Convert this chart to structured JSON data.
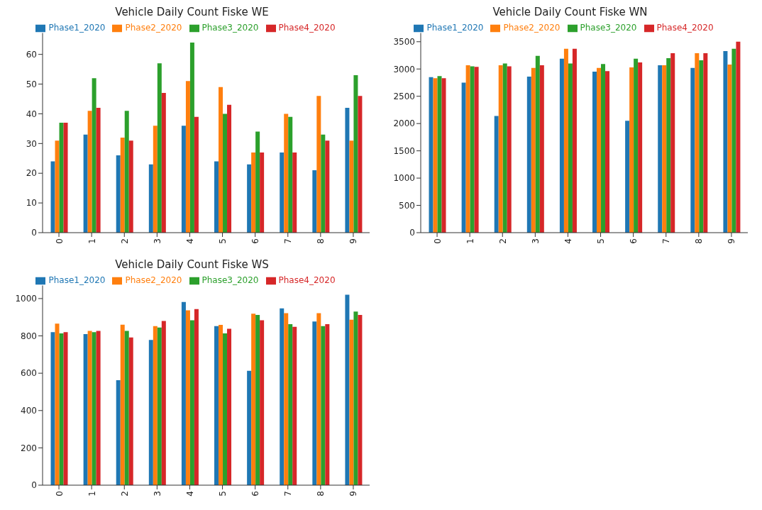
{
  "chart_data": [
    {
      "type": "bar",
      "title": "Vehicle Daily Count Fiske WE",
      "categories": [
        "0",
        "1",
        "2",
        "3",
        "4",
        "5",
        "6",
        "7",
        "8",
        "9"
      ],
      "ylim": [
        0,
        67.2
      ],
      "yticks": [
        0,
        10,
        20,
        30,
        40,
        50,
        60
      ],
      "legend": "top",
      "series": [
        {
          "name": "Phase1_2020",
          "color": "#1f77b4",
          "values": [
            24,
            33,
            26,
            23,
            36,
            24,
            23,
            27,
            21,
            42
          ]
        },
        {
          "name": "Phase2_2020",
          "color": "#ff7f0e",
          "values": [
            31,
            41,
            32,
            36,
            51,
            49,
            27,
            40,
            46,
            31
          ]
        },
        {
          "name": "Phase3_2020",
          "color": "#2ca02c",
          "values": [
            37,
            52,
            41,
            57,
            64,
            40,
            34,
            39,
            33,
            53
          ]
        },
        {
          "name": "Phase4_2020",
          "color": "#d62728",
          "values": [
            37,
            42,
            31,
            47,
            39,
            43,
            27,
            27,
            31,
            46
          ]
        }
      ]
    },
    {
      "type": "bar",
      "title": "Vehicle Daily Count Fiske WN",
      "categories": [
        "0",
        "1",
        "2",
        "3",
        "4",
        "5",
        "6",
        "7",
        "8",
        "9"
      ],
      "ylim": [
        0,
        3660
      ],
      "yticks": [
        0,
        500,
        1000,
        1500,
        2000,
        2500,
        3000,
        3500
      ],
      "legend": "top",
      "series": [
        {
          "name": "Phase1_2020",
          "color": "#1f77b4",
          "values": [
            2850,
            2750,
            2140,
            2860,
            3190,
            2950,
            2050,
            3070,
            3020,
            3330
          ]
        },
        {
          "name": "Phase2_2020",
          "color": "#ff7f0e",
          "values": [
            2830,
            3070,
            3070,
            3020,
            3370,
            3020,
            3030,
            3070,
            3290,
            3080
          ]
        },
        {
          "name": "Phase3_2020",
          "color": "#2ca02c",
          "values": [
            2870,
            3050,
            3100,
            3240,
            3100,
            3090,
            3190,
            3200,
            3160,
            3370
          ]
        },
        {
          "name": "Phase4_2020",
          "color": "#d62728",
          "values": [
            2830,
            3040,
            3050,
            3070,
            3370,
            2960,
            3120,
            3290,
            3290,
            3500
          ]
        }
      ]
    },
    {
      "type": "bar",
      "title": "Vehicle Daily Count Fiske WS",
      "categories": [
        "0",
        "1",
        "2",
        "3",
        "4",
        "5",
        "6",
        "7",
        "8",
        "9"
      ],
      "ylim": [
        0,
        1070
      ],
      "yticks": [
        0,
        200,
        400,
        600,
        800,
        1000
      ],
      "legend": "top",
      "series": [
        {
          "name": "Phase1_2020",
          "color": "#1f77b4",
          "values": [
            820,
            810,
            563,
            778,
            982,
            852,
            613,
            947,
            877,
            1021
          ]
        },
        {
          "name": "Phase2_2020",
          "color": "#ff7f0e",
          "values": [
            866,
            827,
            860,
            852,
            937,
            859,
            919,
            922,
            922,
            887
          ]
        },
        {
          "name": "Phase3_2020",
          "color": "#2ca02c",
          "values": [
            813,
            820,
            827,
            845,
            884,
            813,
            912,
            863,
            852,
            930
          ]
        },
        {
          "name": "Phase4_2020",
          "color": "#d62728",
          "values": [
            820,
            827,
            792,
            880,
            944,
            838,
            884,
            849,
            863,
            912
          ]
        }
      ]
    }
  ]
}
